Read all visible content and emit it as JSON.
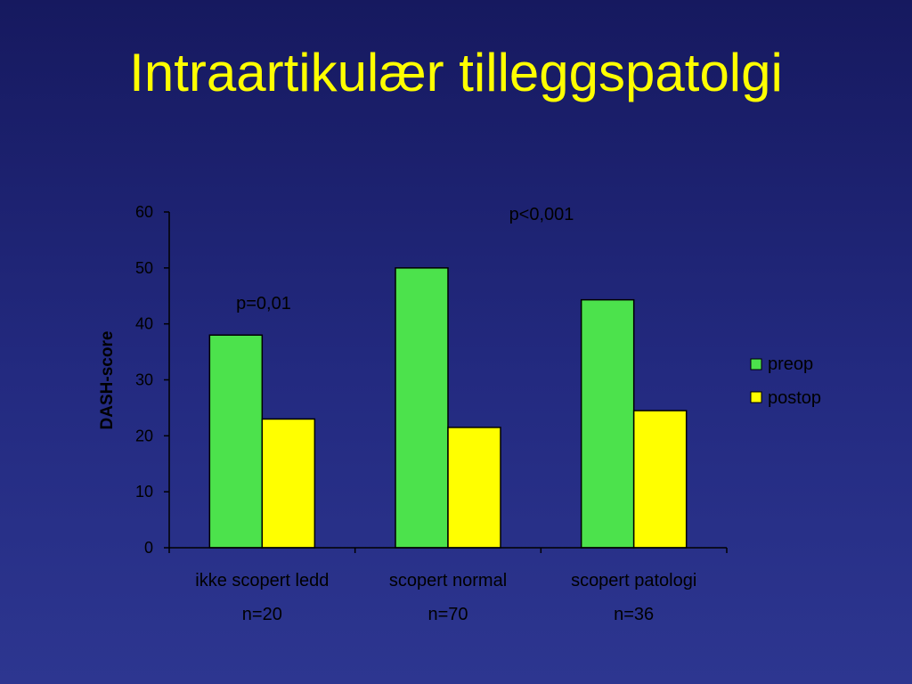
{
  "slide": {
    "title": "Intraartikulær tilleggspatolgi"
  },
  "colors": {
    "preop": "#4ce24c",
    "postop": "#ffff00",
    "title": "#ffff00"
  },
  "chart_data": {
    "type": "bar",
    "title": "",
    "xlabel": "",
    "ylabel": "DASH-score",
    "ylim": [
      0,
      60
    ],
    "yticks": [
      "0",
      "10",
      "20",
      "30",
      "40",
      "50",
      "60"
    ],
    "categories": [
      "ikke scopert ledd",
      "scopert normal",
      "scopert patologi"
    ],
    "category_counts": [
      "n=20",
      "n=70",
      "n=36"
    ],
    "series": [
      {
        "name": "preop",
        "values": [
          38,
          50,
          44.3
        ]
      },
      {
        "name": "postop",
        "values": [
          23,
          21.5,
          24.5
        ]
      }
    ],
    "legend_position": "right",
    "grid": false,
    "annotations": [
      "p=0,01",
      "p<0,001"
    ]
  }
}
